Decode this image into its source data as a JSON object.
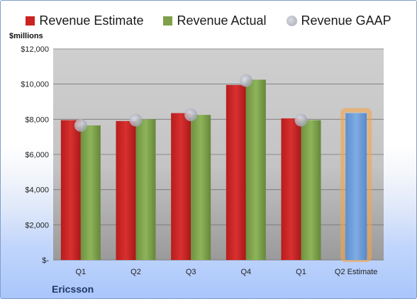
{
  "chart_data": {
    "type": "bar",
    "title": "",
    "ylabel": "$millions",
    "xlabel": "",
    "company_label": "Ericsson",
    "categories": [
      "Q1",
      "Q2",
      "Q3",
      "Q4",
      "Q1",
      "Q2 Estimate"
    ],
    "y_ticks": [
      "$-",
      "$2,000",
      "$4,000",
      "$6,000",
      "$8,000",
      "$10,000",
      "$12,000"
    ],
    "ylim": [
      0,
      12000
    ],
    "grid": true,
    "legend_position": "top",
    "series": [
      {
        "name": "Revenue Estimate",
        "kind": "bar",
        "color": "#cc2222",
        "values": [
          7950,
          7900,
          8350,
          9950,
          8050,
          null
        ]
      },
      {
        "name": "Revenue Actual",
        "kind": "bar",
        "color": "#7ea04a",
        "values": [
          7650,
          8000,
          8250,
          10250,
          7950,
          null
        ]
      },
      {
        "name": "Revenue GAAP",
        "kind": "marker",
        "color": "#b9bcc8",
        "values": [
          7650,
          7950,
          8250,
          10200,
          7950,
          null
        ]
      }
    ],
    "highlight": {
      "category_index": 5,
      "value": 8350,
      "color": "#6f9fd8",
      "glow_color": "#f5a54a"
    }
  }
}
